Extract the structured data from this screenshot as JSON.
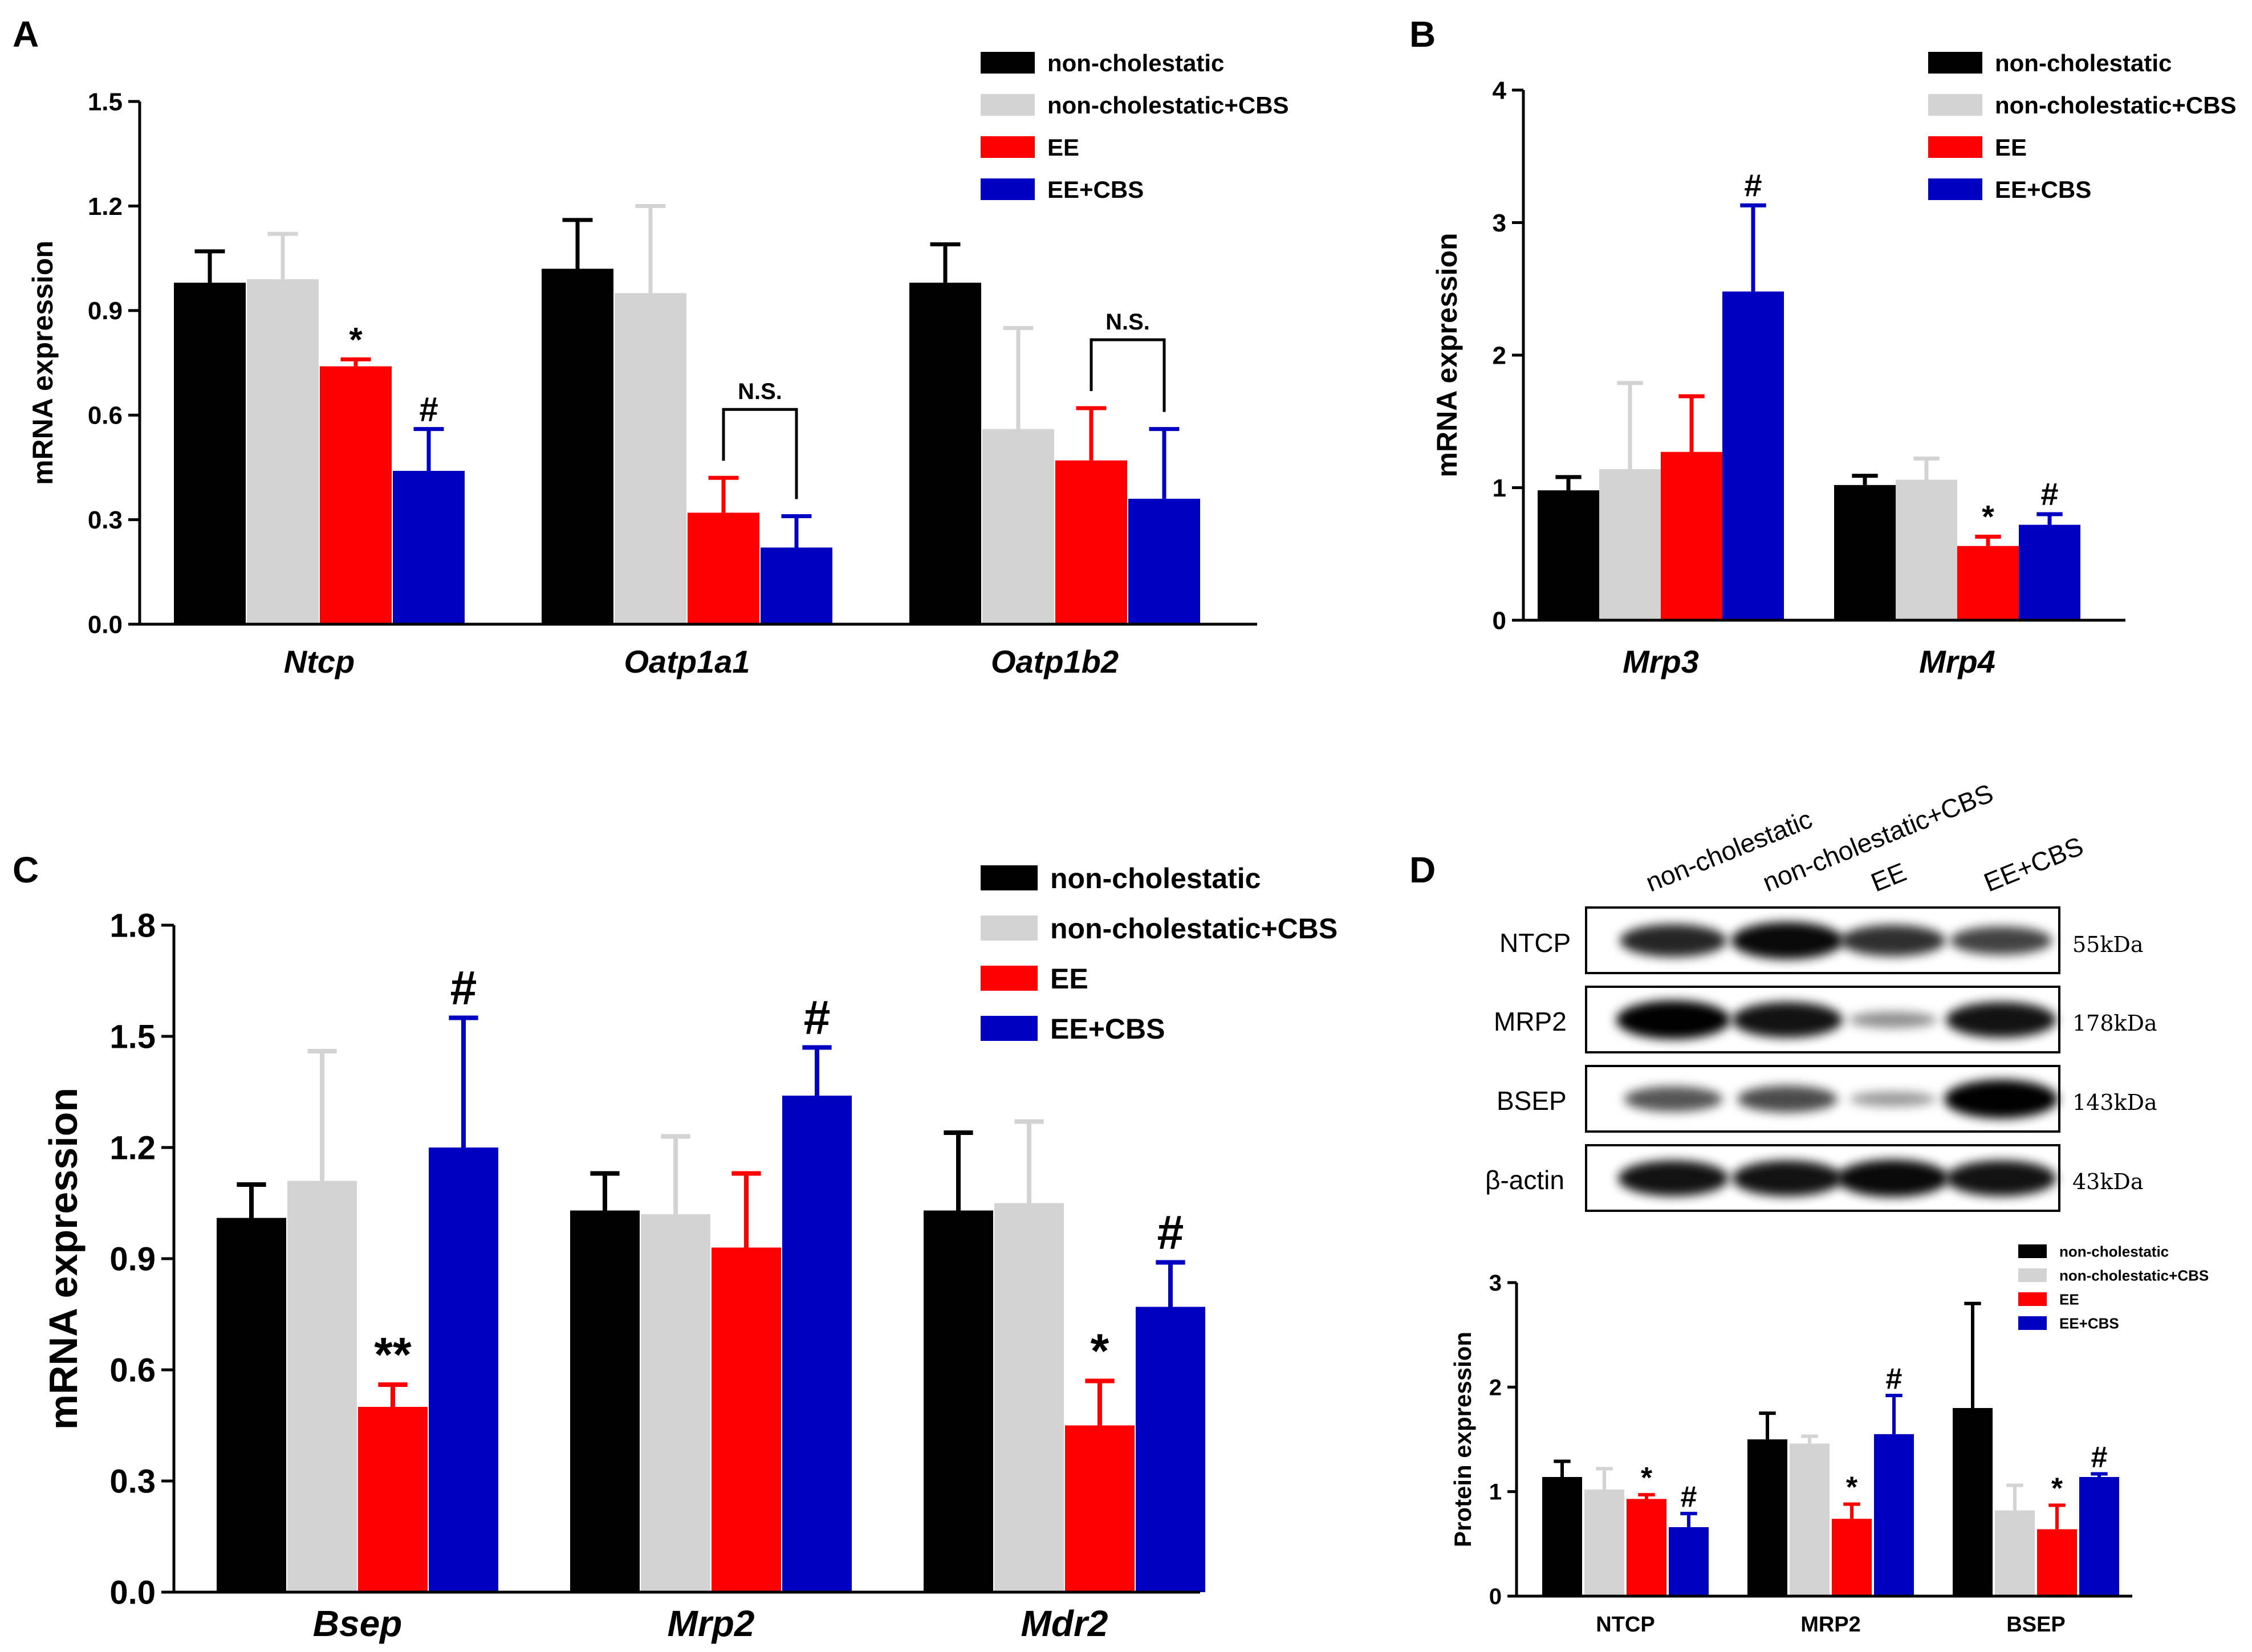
{
  "figure": {
    "colors": {
      "non-cholestatic": "#000000",
      "non-cholestatic+CBS": "#d3d3d3",
      "EE": "#ff0000",
      "EE+CBS": "#0000c0"
    }
  },
  "chart_data": [
    {
      "panel": "A",
      "type": "bar",
      "ylabel": "mRNA expression",
      "ylim": [
        0,
        1.5
      ],
      "yticks": [
        "0.0",
        "0.3",
        "0.6",
        "0.9",
        "1.2",
        "1.5"
      ],
      "categories": [
        "Ntcp",
        "Oatp1a1",
        "Oatp1b2"
      ],
      "legend": [
        "non-cholestatic",
        "non-cholestatic+CBS",
        "EE",
        "EE+CBS"
      ],
      "series": [
        {
          "name": "non-cholestatic",
          "values": [
            0.98,
            1.02,
            0.98
          ],
          "errors": [
            0.09,
            0.14,
            0.11
          ]
        },
        {
          "name": "non-cholestatic+CBS",
          "values": [
            0.99,
            0.95,
            0.56
          ],
          "errors": [
            0.13,
            0.25,
            0.29
          ]
        },
        {
          "name": "EE",
          "values": [
            0.74,
            0.32,
            0.47
          ],
          "errors": [
            0.02,
            0.1,
            0.15
          ]
        },
        {
          "name": "EE+CBS",
          "values": [
            0.44,
            0.22,
            0.36
          ],
          "errors": [
            0.12,
            0.09,
            0.2
          ]
        }
      ],
      "annotations": [
        {
          "text": "*",
          "category": 0,
          "series": 2
        },
        {
          "text": "#",
          "category": 0,
          "series": 3
        }
      ],
      "brackets": [
        {
          "text": "N.S.",
          "category": 1,
          "from": 2,
          "to": 3
        },
        {
          "text": "N.S.",
          "category": 2,
          "from": 2,
          "to": 3
        }
      ]
    },
    {
      "panel": "B",
      "type": "bar",
      "ylabel": "mRNA expression",
      "ylim": [
        0,
        4
      ],
      "yticks": [
        "0",
        "1",
        "2",
        "3",
        "4"
      ],
      "categories": [
        "Mrp3",
        "Mrp4"
      ],
      "legend": [
        "non-cholestatic",
        "non-cholestatic+CBS",
        "EE",
        "EE+CBS"
      ],
      "series": [
        {
          "name": "non-cholestatic",
          "values": [
            0.98,
            1.02
          ],
          "errors": [
            0.1,
            0.07
          ]
        },
        {
          "name": "non-cholestatic+CBS",
          "values": [
            1.14,
            1.06
          ],
          "errors": [
            0.65,
            0.16
          ]
        },
        {
          "name": "EE",
          "values": [
            1.27,
            0.56
          ],
          "errors": [
            0.42,
            0.07
          ]
        },
        {
          "name": "EE+CBS",
          "values": [
            2.48,
            0.72
          ],
          "errors": [
            0.65,
            0.08
          ]
        }
      ],
      "annotations": [
        {
          "text": "#",
          "category": 0,
          "series": 3
        },
        {
          "text": "*",
          "category": 1,
          "series": 2
        },
        {
          "text": "#",
          "category": 1,
          "series": 3
        }
      ]
    },
    {
      "panel": "C",
      "type": "bar",
      "ylabel": "mRNA expression",
      "ylim": [
        0,
        1.8
      ],
      "yticks": [
        "0.0",
        "0.3",
        "0.6",
        "0.9",
        "1.2",
        "1.5",
        "1.8"
      ],
      "categories": [
        "Bsep",
        "Mrp2",
        "Mdr2"
      ],
      "legend": [
        "non-cholestatic",
        "non-cholestatic+CBS",
        "EE",
        "EE+CBS"
      ],
      "series": [
        {
          "name": "non-cholestatic",
          "values": [
            1.01,
            1.03,
            1.03
          ],
          "errors": [
            0.09,
            0.1,
            0.21
          ]
        },
        {
          "name": "non-cholestatic+CBS",
          "values": [
            1.11,
            1.02,
            1.05
          ],
          "errors": [
            0.35,
            0.21,
            0.22
          ]
        },
        {
          "name": "EE",
          "values": [
            0.5,
            0.93,
            0.45
          ],
          "errors": [
            0.06,
            0.2,
            0.12
          ]
        },
        {
          "name": "EE+CBS",
          "values": [
            1.2,
            1.34,
            0.77
          ],
          "errors": [
            0.35,
            0.13,
            0.12
          ]
        }
      ],
      "annotations": [
        {
          "text": "**",
          "category": 0,
          "series": 2
        },
        {
          "text": "#",
          "category": 0,
          "series": 3
        },
        {
          "text": "#",
          "category": 1,
          "series": 3
        },
        {
          "text": "*",
          "category": 2,
          "series": 2
        },
        {
          "text": "#",
          "category": 2,
          "series": 3
        }
      ]
    },
    {
      "panel": "D",
      "type": "bar",
      "ylabel": "Protein expression",
      "ylim": [
        0,
        3
      ],
      "yticks": [
        "0",
        "1",
        "2",
        "3"
      ],
      "categories": [
        "NTCP",
        "MRP2",
        "BSEP"
      ],
      "legend": [
        "non-cholestatic",
        "non-cholestatic+CBS",
        "EE",
        "EE+CBS"
      ],
      "series": [
        {
          "name": "non-cholestatic",
          "values": [
            1.14,
            1.5,
            1.8
          ],
          "errors": [
            0.15,
            0.25,
            1.0
          ]
        },
        {
          "name": "non-cholestatic+CBS",
          "values": [
            1.02,
            1.46,
            0.82
          ],
          "errors": [
            0.2,
            0.07,
            0.24
          ]
        },
        {
          "name": "EE",
          "values": [
            0.93,
            0.74,
            0.64
          ],
          "errors": [
            0.04,
            0.14,
            0.23
          ]
        },
        {
          "name": "EE+CBS",
          "values": [
            0.66,
            1.55,
            1.14
          ],
          "errors": [
            0.13,
            0.37,
            0.03
          ]
        }
      ],
      "annotations": [
        {
          "text": "*",
          "category": 0,
          "series": 2
        },
        {
          "text": "#",
          "category": 0,
          "series": 3
        },
        {
          "text": "*",
          "category": 1,
          "series": 2
        },
        {
          "text": "#",
          "category": 1,
          "series": 3
        },
        {
          "text": "*",
          "category": 2,
          "series": 2
        },
        {
          "text": "#",
          "category": 2,
          "series": 3
        }
      ]
    }
  ],
  "western_blot": {
    "panel": "D",
    "lanes": [
      "non-cholestatic",
      "non-cholestatic+CBS",
      "EE",
      "EE+CBS"
    ],
    "rows": [
      {
        "protein": "NTCP",
        "size": "55kDa",
        "intensity": [
          0.8,
          0.95,
          0.75,
          0.65
        ]
      },
      {
        "protein": "MRP2",
        "size": "178kDa",
        "intensity": [
          1.0,
          0.9,
          0.25,
          0.9
        ]
      },
      {
        "protein": "BSEP",
        "size": "143kDa",
        "intensity": [
          0.55,
          0.6,
          0.2,
          1.0
        ]
      },
      {
        "protein": "β-actin",
        "size": "43kDa",
        "intensity": [
          0.9,
          0.9,
          0.95,
          0.9
        ]
      }
    ]
  }
}
